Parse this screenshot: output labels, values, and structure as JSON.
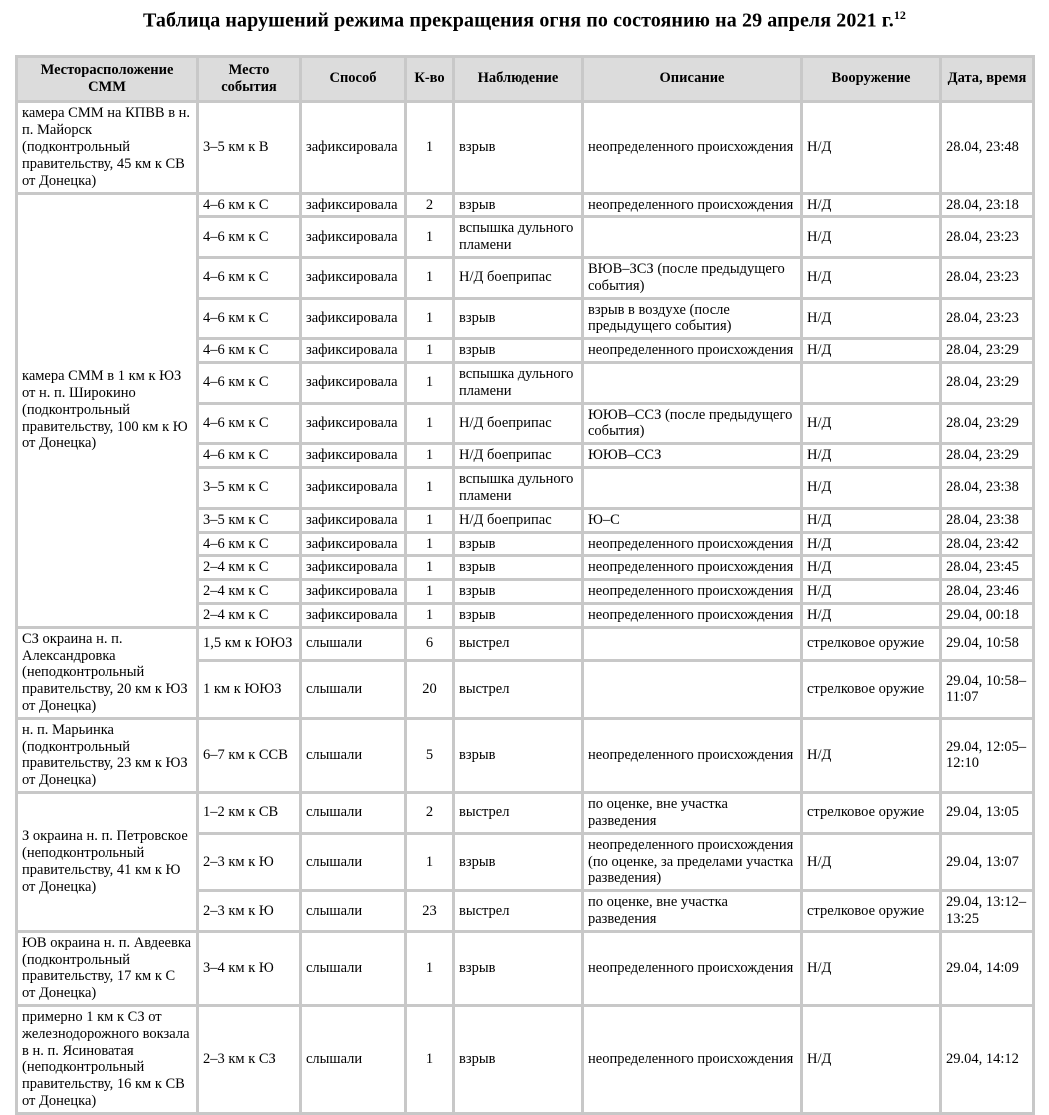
{
  "title": {
    "text": "Таблица нарушений режима прекращения огня по состоянию на 29 апреля 2021 г.",
    "footnote_ref": "12"
  },
  "colors": {
    "grid": "#c8c8c8",
    "header_bg": "#dcdcdc",
    "cell_bg": "#ffffff",
    "text": "#000000"
  },
  "table": {
    "headers": [
      "Месторасположение СММ",
      "Место события",
      "Способ",
      "К-во",
      "Наблюдение",
      "Описание",
      "Вооружение",
      "Дата, время"
    ],
    "groups": [
      {
        "location": "камера СММ на КПВВ в н. п. Майорск (подконтрольный правительству, 45 км к СВ от Донецка)",
        "rows": [
          [
            "3–5 км к В",
            "зафиксировала",
            "1",
            "взрыв",
            "неопределенного происхождения",
            "Н/Д",
            "28.04, 23:48"
          ]
        ]
      },
      {
        "location": "камера СММ в 1 км к ЮЗ от н. п. Широкино (подконтрольный правительству, 100 км к Ю от Донецка)",
        "rows": [
          [
            "4–6 км к С",
            "зафиксировала",
            "2",
            "взрыв",
            "неопределенного происхождения",
            "Н/Д",
            "28.04, 23:18"
          ],
          [
            "4–6 км к С",
            "зафиксировала",
            "1",
            "вспышка дульного пламени",
            "",
            "Н/Д",
            "28.04, 23:23"
          ],
          [
            "4–6 км к С",
            "зафиксировала",
            "1",
            "Н/Д боеприпас",
            "ВЮВ–ЗСЗ (после предыдущего события)",
            "Н/Д",
            "28.04, 23:23"
          ],
          [
            "4–6 км к С",
            "зафиксировала",
            "1",
            "взрыв",
            "взрыв в воздухе (после предыдущего события)",
            "Н/Д",
            "28.04, 23:23"
          ],
          [
            "4–6 км к С",
            "зафиксировала",
            "1",
            "взрыв",
            "неопределенного происхождения",
            "Н/Д",
            "28.04, 23:29"
          ],
          [
            "4–6 км к С",
            "зафиксировала",
            "1",
            "вспышка дульного пламени",
            "",
            "",
            "28.04, 23:29"
          ],
          [
            "4–6 км к С",
            "зафиксировала",
            "1",
            "Н/Д боеприпас",
            "ЮЮВ–ССЗ (после предыдущего события)",
            "Н/Д",
            "28.04, 23:29"
          ],
          [
            "4–6 км к С",
            "зафиксировала",
            "1",
            "Н/Д боеприпас",
            "ЮЮВ–ССЗ",
            "Н/Д",
            "28.04, 23:29"
          ],
          [
            "3–5 км к С",
            "зафиксировала",
            "1",
            "вспышка дульного пламени",
            "",
            "Н/Д",
            "28.04, 23:38"
          ],
          [
            "3–5 км к С",
            "зафиксировала",
            "1",
            "Н/Д боеприпас",
            "Ю–С",
            "Н/Д",
            "28.04, 23:38"
          ],
          [
            "4–6 км к С",
            "зафиксировала",
            "1",
            "взрыв",
            "неопределенного происхождения",
            "Н/Д",
            "28.04, 23:42"
          ],
          [
            "2–4 км к С",
            "зафиксировала",
            "1",
            "взрыв",
            "неопределенного происхождения",
            "Н/Д",
            "28.04, 23:45"
          ],
          [
            "2–4 км к С",
            "зафиксировала",
            "1",
            "взрыв",
            "неопределенного происхождения",
            "Н/Д",
            "28.04, 23:46"
          ],
          [
            "2–4 км к С",
            "зафиксировала",
            "1",
            "взрыв",
            "неопределенного происхождения",
            "Н/Д",
            "29.04, 00:18"
          ]
        ]
      },
      {
        "location": "СЗ окраина н. п. Александровка (неподконтрольный правительству, 20 км к ЮЗ от Донецка)",
        "rows": [
          [
            "1,5 км к ЮЮЗ",
            "слышали",
            "6",
            "выстрел",
            "",
            "стрелковое оружие",
            "29.04, 10:58"
          ],
          [
            "1 км к ЮЮЗ",
            "слышали",
            "20",
            "выстрел",
            "",
            "стрелковое оружие",
            "29.04, 10:58–11:07"
          ]
        ]
      },
      {
        "location": "н. п. Марьинка (подконтрольный правительству, 23 км к ЮЗ от Донецка)",
        "rows": [
          [
            "6–7 км к ССВ",
            "слышали",
            "5",
            "взрыв",
            "неопределенного происхождения",
            "Н/Д",
            "29.04, 12:05–12:10"
          ]
        ]
      },
      {
        "location": "З окраина н. п. Петровское (неподконтрольный правительству, 41 км к Ю от Донецка)",
        "rows": [
          [
            "1–2 км к СВ",
            "слышали",
            "2",
            "выстрел",
            "по оценке, вне участка разведения",
            "стрелковое оружие",
            "29.04, 13:05"
          ],
          [
            "2–3 км к Ю",
            "слышали",
            "1",
            "взрыв",
            "неопределенного происхождения (по оценке, за пределами участка разведения)",
            "Н/Д",
            "29.04, 13:07"
          ],
          [
            "2–3 км к Ю",
            "слышали",
            "23",
            "выстрел",
            "по оценке, вне участка разведения",
            "стрелковое оружие",
            "29.04, 13:12–13:25"
          ]
        ]
      },
      {
        "location": "ЮВ окраина н. п. Авдеевка (подконтрольный правительству, 17 км к С от Донецка)",
        "rows": [
          [
            "3–4 км к Ю",
            "слышали",
            "1",
            "взрыв",
            "неопределенного происхождения",
            "Н/Д",
            "29.04, 14:09"
          ]
        ]
      },
      {
        "location": "примерно 1 км к СЗ от железнодорожного вокзала в н. п. Ясиноватая (неподконтрольный правительству, 16 км к СВ от Донецка)",
        "rows": [
          [
            "2–3 км к СЗ",
            "слышали",
            "1",
            "взрыв",
            "неопределенного происхождения",
            "Н/Д",
            "29.04, 14:12"
          ]
        ]
      }
    ]
  }
}
